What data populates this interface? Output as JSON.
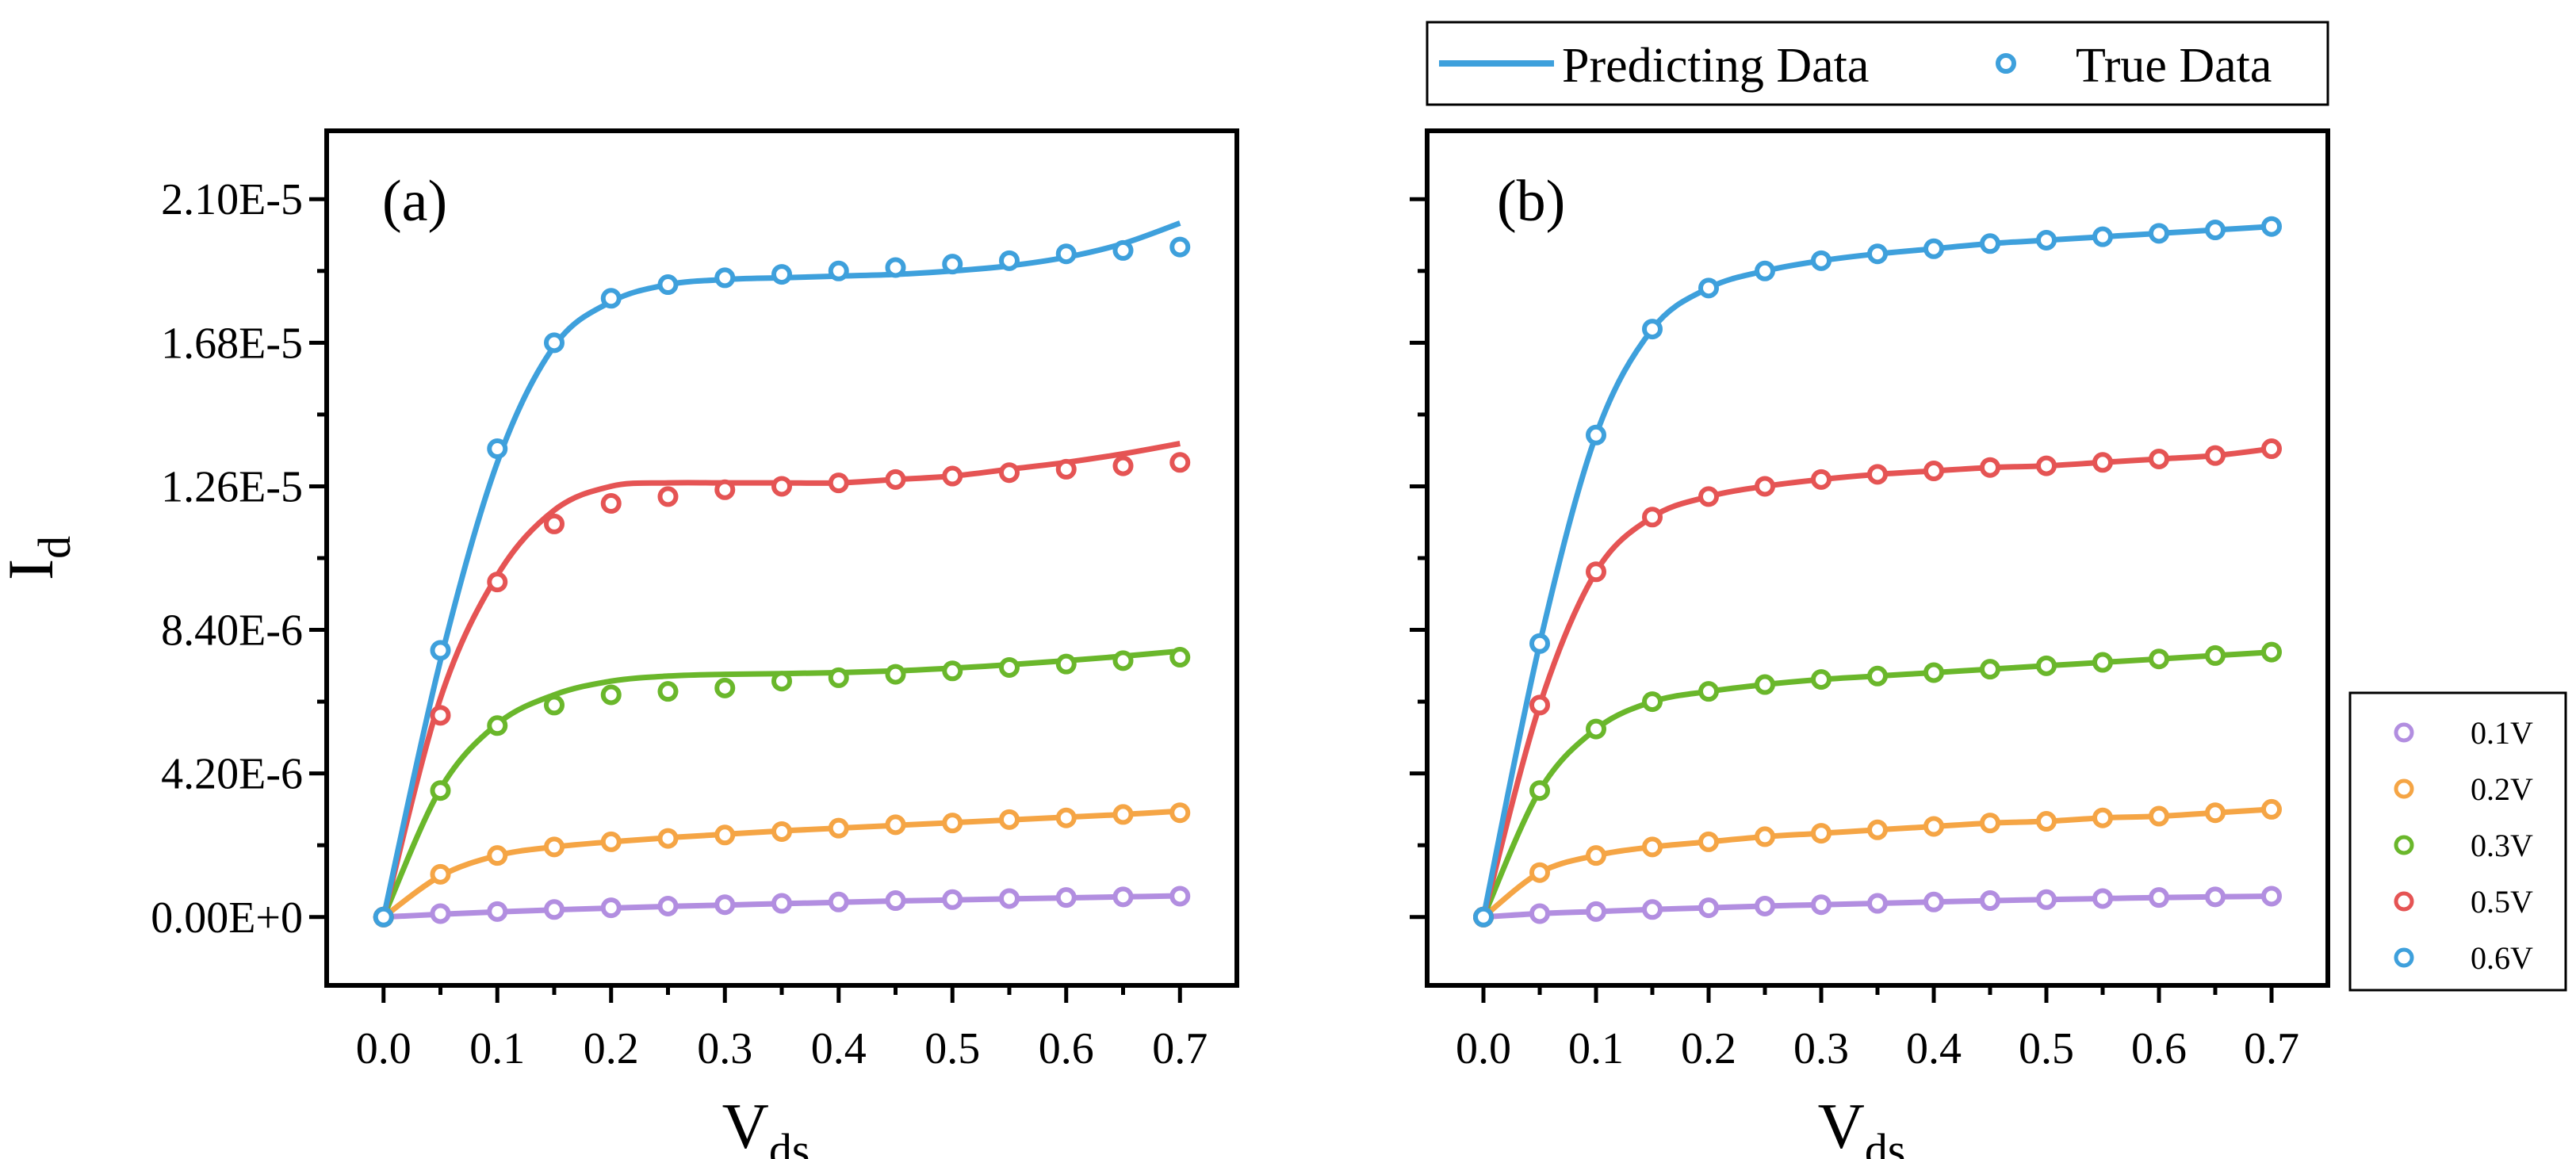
{
  "chart_data": [
    {
      "type": "line",
      "panel": "(a)",
      "xlabel": "V",
      "xlabel_sub": "ds",
      "ylabel": "I",
      "ylabel_sub": "d",
      "xlim": [
        -0.05,
        0.75
      ],
      "ylim": [
        -2e-06,
        2.3e-05
      ],
      "xticks": [
        0.0,
        0.1,
        0.2,
        0.3,
        0.4,
        0.5,
        0.6,
        0.7
      ],
      "xtick_labels": [
        "0.0",
        "0.1",
        "0.2",
        "0.3",
        "0.4",
        "0.5",
        "0.6",
        "0.7"
      ],
      "yticks": [
        0,
        4.2e-06,
        8.4e-06,
        1.26e-05,
        1.68e-05,
        2.1e-05
      ],
      "ytick_labels": [
        "0.00E+0",
        "4.20E-6",
        "8.40E-6",
        "1.26E-5",
        "1.68E-5",
        "2.10E-5"
      ],
      "x": [
        0.0,
        0.05,
        0.1,
        0.15,
        0.2,
        0.25,
        0.3,
        0.35,
        0.4,
        0.45,
        0.5,
        0.55,
        0.6,
        0.65,
        0.7
      ],
      "series": [
        {
          "name": "0.1V",
          "color": "#b28ee0",
          "true": [
            0,
            1e-07,
            1.6e-07,
            2.2e-07,
            2.7e-07,
            3.2e-07,
            3.6e-07,
            4e-07,
            4.4e-07,
            4.8e-07,
            5.1e-07,
            5.4e-07,
            5.7e-07,
            5.9e-07,
            6.1e-07
          ],
          "pred": [
            0,
            8e-08,
            1.5e-07,
            2.1e-07,
            2.6e-07,
            3.1e-07,
            3.5e-07,
            3.9e-07,
            4.3e-07,
            4.7e-07,
            5e-07,
            5.3e-07,
            5.6e-07,
            5.9e-07,
            6.2e-07
          ]
        },
        {
          "name": "0.2V",
          "color": "#f5a545",
          "true": [
            0,
            1.25e-06,
            1.8e-06,
            2.05e-06,
            2.2e-06,
            2.3e-06,
            2.4e-06,
            2.5e-06,
            2.6e-06,
            2.7e-06,
            2.75e-06,
            2.85e-06,
            2.9e-06,
            3e-06,
            3.05e-06
          ],
          "pred": [
            0,
            1.2e-06,
            1.8e-06,
            2.05e-06,
            2.2e-06,
            2.32e-06,
            2.42e-06,
            2.52e-06,
            2.6e-06,
            2.68e-06,
            2.76e-06,
            2.84e-06,
            2.92e-06,
            3e-06,
            3.1e-06
          ]
        },
        {
          "name": "0.3V",
          "color": "#6ab72b",
          "true": [
            0,
            3.7e-06,
            5.6e-06,
            6.2e-06,
            6.5e-06,
            6.6e-06,
            6.7e-06,
            6.9e-06,
            7e-06,
            7.1e-06,
            7.2e-06,
            7.3e-06,
            7.4e-06,
            7.5e-06,
            7.6e-06
          ],
          "pred": [
            0,
            3.75e-06,
            5.65e-06,
            6.5e-06,
            6.9e-06,
            7.05e-06,
            7.1e-06,
            7.12e-06,
            7.15e-06,
            7.2e-06,
            7.28e-06,
            7.38e-06,
            7.5e-06,
            7.63e-06,
            7.78e-06
          ]
        },
        {
          "name": "0.5V",
          "color": "#e55454",
          "true": [
            0,
            5.9e-06,
            9.8e-06,
            1.15e-05,
            1.21e-05,
            1.23e-05,
            1.25e-05,
            1.26e-05,
            1.27e-05,
            1.28e-05,
            1.29e-05,
            1.3e-05,
            1.31e-05,
            1.32e-05,
            1.33e-05
          ],
          "pred": [
            0,
            6.4e-06,
            1e-05,
            1.19e-05,
            1.26e-05,
            1.27e-05,
            1.27e-05,
            1.27e-05,
            1.27e-05,
            1.28e-05,
            1.29e-05,
            1.31e-05,
            1.33e-05,
            1.355e-05,
            1.385e-05
          ]
        },
        {
          "name": "0.6V",
          "color": "#3ea0dc",
          "true": [
            0,
            7.8e-06,
            1.37e-05,
            1.68e-05,
            1.81e-05,
            1.85e-05,
            1.87e-05,
            1.88e-05,
            1.89e-05,
            1.9e-05,
            1.91e-05,
            1.92e-05,
            1.94e-05,
            1.95e-05,
            1.96e-05
          ],
          "pred": [
            0,
            7.5e-06,
            1.33e-05,
            1.67e-05,
            1.8e-05,
            1.85e-05,
            1.865e-05,
            1.87e-05,
            1.875e-05,
            1.88e-05,
            1.89e-05,
            1.905e-05,
            1.93e-05,
            1.97e-05,
            2.03e-05
          ]
        }
      ]
    },
    {
      "type": "line",
      "panel": "(b)",
      "xlabel": "V",
      "xlabel_sub": "ds",
      "xlim": [
        -0.05,
        0.75
      ],
      "ylim": [
        -2e-06,
        2.3e-05
      ],
      "xticks": [
        0.0,
        0.1,
        0.2,
        0.3,
        0.4,
        0.5,
        0.6,
        0.7
      ],
      "xtick_labels": [
        "0.0",
        "0.1",
        "0.2",
        "0.3",
        "0.4",
        "0.5",
        "0.6",
        "0.7"
      ],
      "yticks": [
        0,
        4.2e-06,
        8.4e-06,
        1.26e-05,
        1.68e-05,
        2.1e-05
      ],
      "x": [
        0.0,
        0.05,
        0.1,
        0.15,
        0.2,
        0.25,
        0.3,
        0.35,
        0.4,
        0.45,
        0.5,
        0.55,
        0.6,
        0.65,
        0.7
      ],
      "series": [
        {
          "name": "0.1V",
          "color": "#b28ee0",
          "true": [
            0,
            1e-07,
            1.6e-07,
            2.2e-07,
            2.7e-07,
            3.2e-07,
            3.6e-07,
            4e-07,
            4.4e-07,
            4.8e-07,
            5.1e-07,
            5.4e-07,
            5.7e-07,
            5.9e-07,
            6.1e-07
          ],
          "pred": [
            0,
            1e-07,
            1.6e-07,
            2.2e-07,
            2.7e-07,
            3.2e-07,
            3.6e-07,
            4e-07,
            4.4e-07,
            4.8e-07,
            5.1e-07,
            5.4e-07,
            5.7e-07,
            5.9e-07,
            6.1e-07
          ]
        },
        {
          "name": "0.2V",
          "color": "#f5a545",
          "true": [
            0,
            1.3e-06,
            1.8e-06,
            2.05e-06,
            2.2e-06,
            2.35e-06,
            2.45e-06,
            2.55e-06,
            2.65e-06,
            2.75e-06,
            2.8e-06,
            2.9e-06,
            2.95e-06,
            3.05e-06,
            3.15e-06
          ],
          "pred": [
            0,
            1.3e-06,
            1.8e-06,
            2.05e-06,
            2.2e-06,
            2.35e-06,
            2.45e-06,
            2.55e-06,
            2.65e-06,
            2.75e-06,
            2.8e-06,
            2.9e-06,
            2.95e-06,
            3.05e-06,
            3.15e-06
          ]
        },
        {
          "name": "0.3V",
          "color": "#6ab72b",
          "true": [
            0,
            3.7e-06,
            5.5e-06,
            6.3e-06,
            6.6e-06,
            6.8e-06,
            6.95e-06,
            7.05e-06,
            7.15e-06,
            7.25e-06,
            7.35e-06,
            7.45e-06,
            7.55e-06,
            7.65e-06,
            7.75e-06
          ],
          "pred": [
            0,
            3.7e-06,
            5.5e-06,
            6.3e-06,
            6.6e-06,
            6.8e-06,
            6.95e-06,
            7.05e-06,
            7.15e-06,
            7.25e-06,
            7.35e-06,
            7.45e-06,
            7.55e-06,
            7.65e-06,
            7.75e-06
          ]
        },
        {
          "name": "0.5V",
          "color": "#e55454",
          "true": [
            0,
            6.2e-06,
            1.01e-05,
            1.17e-05,
            1.23e-05,
            1.26e-05,
            1.28e-05,
            1.295e-05,
            1.305e-05,
            1.315e-05,
            1.32e-05,
            1.33e-05,
            1.34e-05,
            1.35e-05,
            1.37e-05
          ],
          "pred": [
            0,
            6.2e-06,
            1.01e-05,
            1.17e-05,
            1.23e-05,
            1.26e-05,
            1.28e-05,
            1.295e-05,
            1.305e-05,
            1.315e-05,
            1.32e-05,
            1.33e-05,
            1.34e-05,
            1.35e-05,
            1.37e-05
          ]
        },
        {
          "name": "0.6V",
          "color": "#3ea0dc",
          "true": [
            0,
            8e-06,
            1.41e-05,
            1.72e-05,
            1.84e-05,
            1.89e-05,
            1.92e-05,
            1.94e-05,
            1.955e-05,
            1.97e-05,
            1.98e-05,
            1.99e-05,
            2e-05,
            2.01e-05,
            2.02e-05
          ],
          "pred": [
            0,
            8e-06,
            1.41e-05,
            1.72e-05,
            1.84e-05,
            1.89e-05,
            1.92e-05,
            1.94e-05,
            1.955e-05,
            1.97e-05,
            1.98e-05,
            1.99e-05,
            2e-05,
            2.01e-05,
            2.02e-05
          ]
        }
      ]
    }
  ],
  "legend_style": {
    "line_label": "Predicting Data",
    "marker_label": "True Data",
    "color": "#3ea0dc"
  },
  "legend_voltage": [
    "0.1V",
    "0.2V",
    "0.3V",
    "0.5V",
    "0.6V"
  ]
}
